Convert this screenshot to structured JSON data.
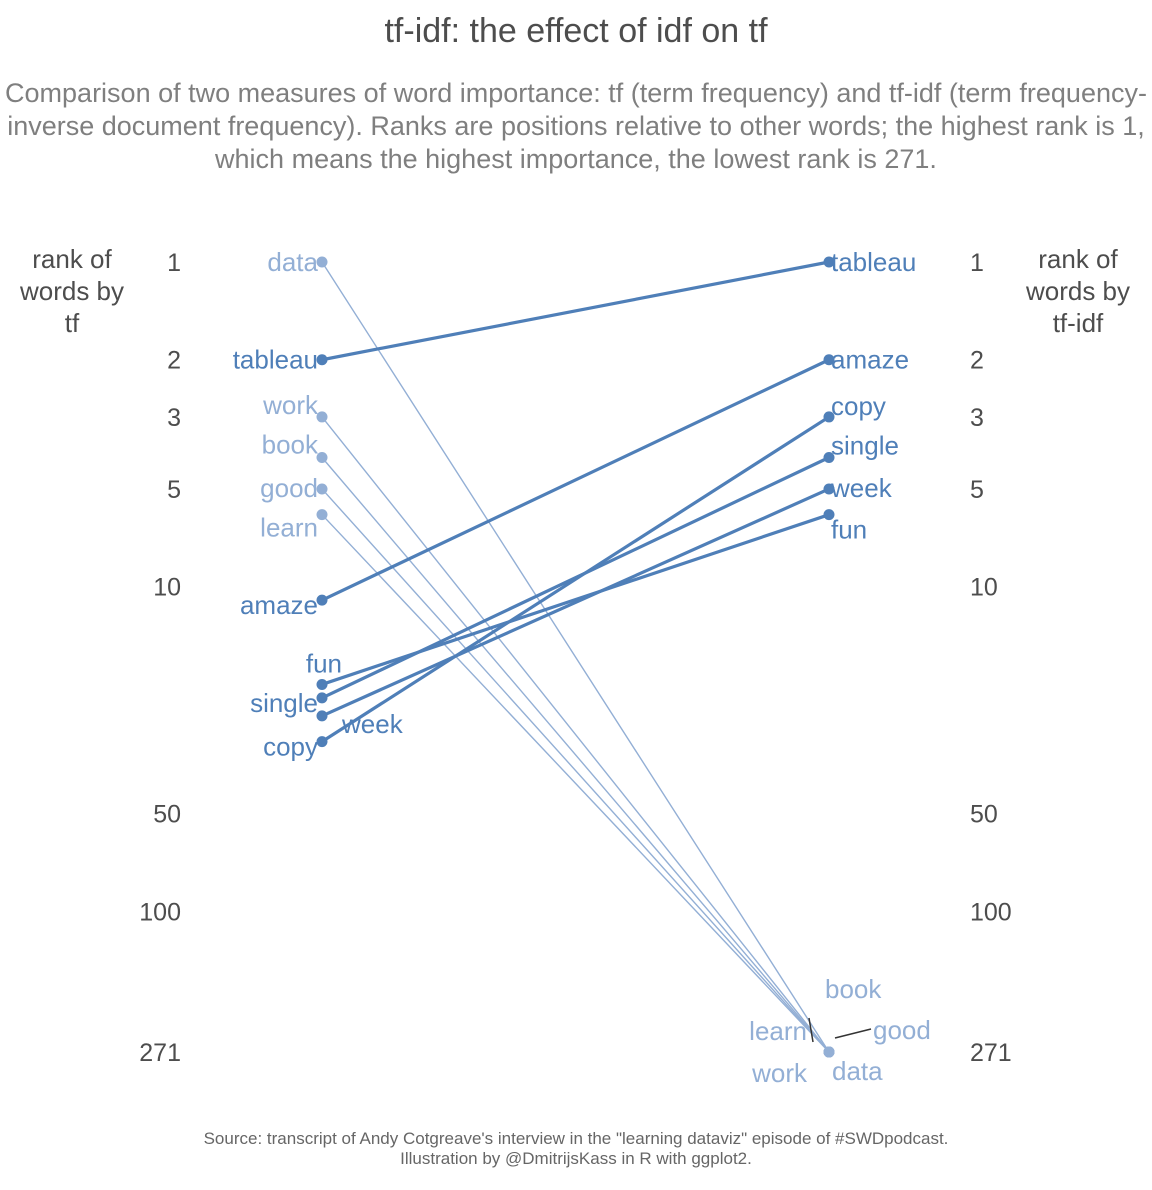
{
  "title": "tf-idf: the effect of idf on tf",
  "subtitle": "Comparison of two measures of word importance: tf (term frequency) and tf-idf (term frequency-inverse document frequency). Ranks are positions relative to other words; the highest rank is 1, which means the highest importance, the lowest rank is 271.",
  "caption": [
    "Source: transcript of Andy Cotgreave's interview in the \"learning dataviz\" episode of #SWDpodcast.",
    "Illustration by @DmitrijsKass in R with ggplot2."
  ],
  "colors": {
    "rising": "#4f7fb8",
    "falling": "#93afd5",
    "text": "#4d4d4d",
    "leader": "#333333"
  },
  "chart_data": {
    "type": "slope",
    "y_scale": "log",
    "y_reversed": true,
    "ylim": [
      1,
      271
    ],
    "left_axis_label": "rank of words by tf",
    "right_axis_label": "rank of words by tf-idf",
    "tick_labels": [
      "1",
      "2",
      "3",
      "5",
      "10",
      "50",
      "100",
      "271"
    ],
    "tick_values": [
      1,
      2,
      3,
      5,
      10,
      50,
      100,
      271
    ],
    "series": [
      {
        "word": "data",
        "tf_rank": 1,
        "tfidf_rank": 271,
        "direction": "falling"
      },
      {
        "word": "tableau",
        "tf_rank": 2,
        "tfidf_rank": 1,
        "direction": "rising"
      },
      {
        "word": "work",
        "tf_rank": 3,
        "tfidf_rank": 271,
        "direction": "falling"
      },
      {
        "word": "book",
        "tf_rank": 4,
        "tfidf_rank": 271,
        "direction": "falling"
      },
      {
        "word": "good",
        "tf_rank": 5,
        "tfidf_rank": 271,
        "direction": "falling"
      },
      {
        "word": "learn",
        "tf_rank": 6,
        "tfidf_rank": 271,
        "direction": "falling"
      },
      {
        "word": "amaze",
        "tf_rank": 11,
        "tfidf_rank": 2,
        "direction": "rising"
      },
      {
        "word": "fun",
        "tf_rank": 20,
        "tfidf_rank": 6,
        "direction": "rising"
      },
      {
        "word": "single",
        "tf_rank": 22,
        "tfidf_rank": 4,
        "direction": "rising"
      },
      {
        "word": "week",
        "tf_rank": 25,
        "tfidf_rank": 5,
        "direction": "rising"
      },
      {
        "word": "copy",
        "tf_rank": 30,
        "tfidf_rank": 3,
        "direction": "rising"
      }
    ]
  }
}
